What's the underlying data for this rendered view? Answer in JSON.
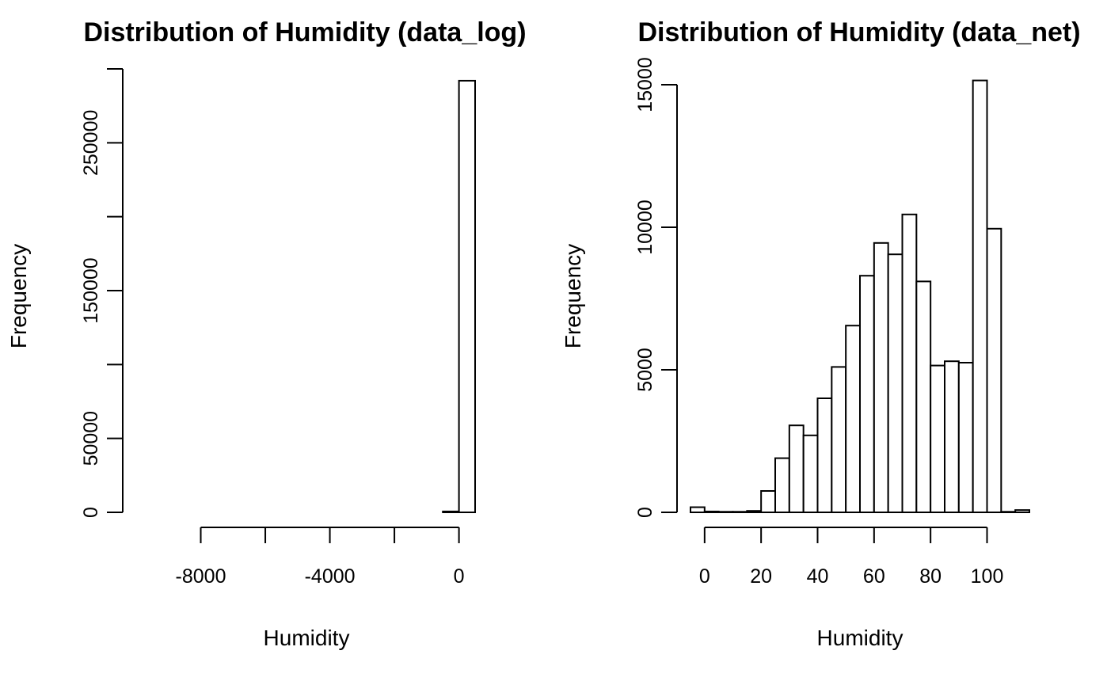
{
  "chart_data": [
    {
      "type": "bar",
      "title": "Distribution of Humidity (data_log)",
      "xlabel": "Humidity",
      "ylabel": "Frequency",
      "grid": false,
      "xlim": [
        -10000,
        500
      ],
      "ylim": [
        0,
        300000
      ],
      "xticks": [
        -8000,
        -6000,
        -4000,
        -2000,
        0
      ],
      "xtick_labels": [
        "-8000",
        "",
        "-4000",
        "",
        "0"
      ],
      "yticks": [
        0,
        50000,
        100000,
        150000,
        200000,
        250000,
        300000
      ],
      "ytick_labels": [
        "0",
        "50000",
        "",
        "150000",
        "",
        "250000",
        ""
      ],
      "bins": [
        {
          "x0": -9500,
          "x1": -9000,
          "value": 0
        },
        {
          "x0": -9000,
          "x1": -8500,
          "value": 0
        },
        {
          "x0": -8500,
          "x1": -8000,
          "value": 0
        },
        {
          "x0": -8000,
          "x1": -7500,
          "value": 0
        },
        {
          "x0": -7500,
          "x1": -7000,
          "value": 0
        },
        {
          "x0": -7000,
          "x1": -6500,
          "value": 0
        },
        {
          "x0": -6500,
          "x1": -6000,
          "value": 0
        },
        {
          "x0": -6000,
          "x1": -5500,
          "value": 0
        },
        {
          "x0": -5500,
          "x1": -5000,
          "value": 0
        },
        {
          "x0": -5000,
          "x1": -4500,
          "value": 0
        },
        {
          "x0": -4500,
          "x1": -4000,
          "value": 0
        },
        {
          "x0": -4000,
          "x1": -3500,
          "value": 0
        },
        {
          "x0": -3500,
          "x1": -3000,
          "value": 0
        },
        {
          "x0": -3000,
          "x1": -2500,
          "value": 0
        },
        {
          "x0": -2500,
          "x1": -2000,
          "value": 0
        },
        {
          "x0": -2000,
          "x1": -1500,
          "value": 0
        },
        {
          "x0": -1500,
          "x1": -1000,
          "value": 0
        },
        {
          "x0": -1000,
          "x1": -500,
          "value": 0
        },
        {
          "x0": -500,
          "x1": 0,
          "value": 600
        },
        {
          "x0": 0,
          "x1": 500,
          "value": 292000
        }
      ]
    },
    {
      "type": "bar",
      "title": "Distribution of Humidity (data_net)",
      "xlabel": "Humidity",
      "ylabel": "Frequency",
      "grid": false,
      "xlim": [
        -5,
        115
      ],
      "ylim": [
        0,
        15000
      ],
      "xticks": [
        0,
        20,
        40,
        60,
        80,
        100
      ],
      "xtick_labels": [
        "0",
        "20",
        "40",
        "60",
        "80",
        "100"
      ],
      "yticks": [
        0,
        5000,
        10000,
        15000
      ],
      "ytick_labels": [
        "0",
        "5000",
        "10000",
        "15000"
      ],
      "bins": [
        {
          "x0": -5,
          "x1": 0,
          "value": 180
        },
        {
          "x0": 0,
          "x1": 5,
          "value": 30
        },
        {
          "x0": 5,
          "x1": 10,
          "value": 20
        },
        {
          "x0": 10,
          "x1": 15,
          "value": 20
        },
        {
          "x0": 15,
          "x1": 20,
          "value": 50
        },
        {
          "x0": 20,
          "x1": 25,
          "value": 750
        },
        {
          "x0": 25,
          "x1": 30,
          "value": 1900
        },
        {
          "x0": 30,
          "x1": 35,
          "value": 3050
        },
        {
          "x0": 35,
          "x1": 40,
          "value": 2700
        },
        {
          "x0": 40,
          "x1": 45,
          "value": 4000
        },
        {
          "x0": 45,
          "x1": 50,
          "value": 5100
        },
        {
          "x0": 50,
          "x1": 55,
          "value": 6550
        },
        {
          "x0": 55,
          "x1": 60,
          "value": 8300
        },
        {
          "x0": 60,
          "x1": 65,
          "value": 9450
        },
        {
          "x0": 65,
          "x1": 70,
          "value": 9050
        },
        {
          "x0": 70,
          "x1": 75,
          "value": 10450
        },
        {
          "x0": 75,
          "x1": 80,
          "value": 8100
        },
        {
          "x0": 80,
          "x1": 85,
          "value": 5150
        },
        {
          "x0": 85,
          "x1": 90,
          "value": 5300
        },
        {
          "x0": 90,
          "x1": 95,
          "value": 5250
        },
        {
          "x0": 95,
          "x1": 100,
          "value": 15150
        },
        {
          "x0": 100,
          "x1": 105,
          "value": 9950
        },
        {
          "x0": 105,
          "x1": 110,
          "value": 20
        },
        {
          "x0": 110,
          "x1": 115,
          "value": 80
        }
      ]
    }
  ]
}
